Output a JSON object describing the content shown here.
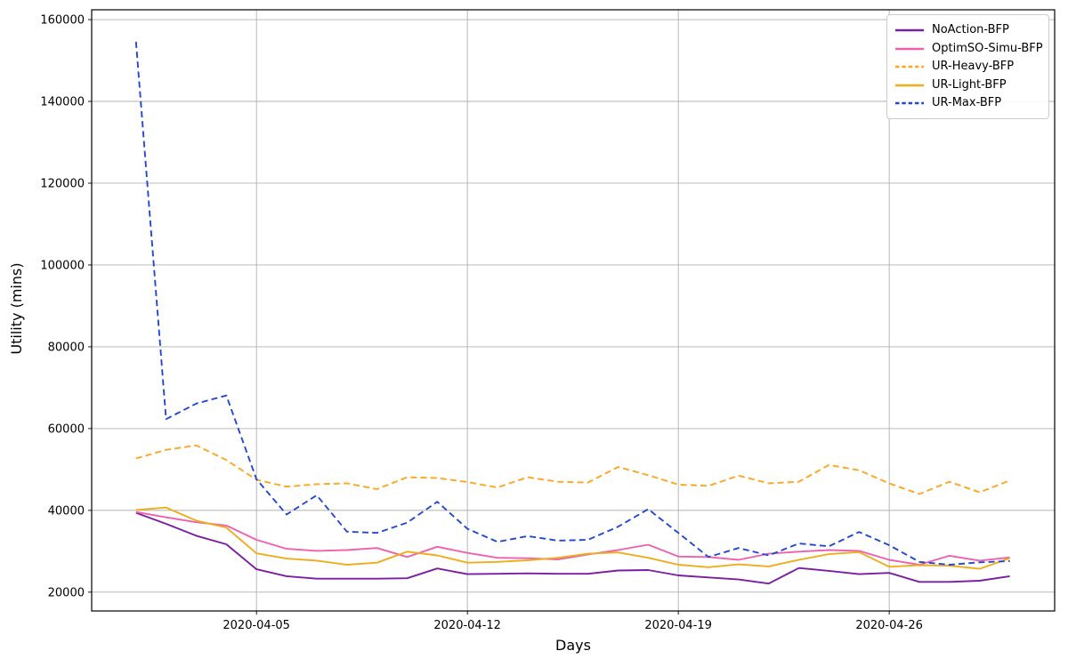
{
  "chart_data": {
    "type": "line",
    "title": "",
    "xlabel": "Days",
    "ylabel": "Utility (mins)",
    "x": [
      "2020-04-01",
      "2020-04-02",
      "2020-04-03",
      "2020-04-04",
      "2020-04-05",
      "2020-04-06",
      "2020-04-07",
      "2020-04-08",
      "2020-04-09",
      "2020-04-10",
      "2020-04-11",
      "2020-04-12",
      "2020-04-13",
      "2020-04-14",
      "2020-04-15",
      "2020-04-16",
      "2020-04-17",
      "2020-04-18",
      "2020-04-19",
      "2020-04-20",
      "2020-04-21",
      "2020-04-22",
      "2020-04-23",
      "2020-04-24",
      "2020-04-25",
      "2020-04-26",
      "2020-04-27",
      "2020-04-28",
      "2020-04-29",
      "2020-04-30"
    ],
    "x_tick_labels": [
      "2020-04-05",
      "2020-04-12",
      "2020-04-19",
      "2020-04-26"
    ],
    "x_tick_days": [
      5,
      12,
      19,
      26
    ],
    "y_ticks": [
      20000,
      40000,
      60000,
      80000,
      100000,
      120000,
      140000,
      160000
    ],
    "ylim": [
      15400,
      162400
    ],
    "xlim_days": [
      -0.47,
      31.49
    ],
    "grid": true,
    "grid_color": "#b0b0b0",
    "legend_position": "upper right",
    "series": [
      {
        "name": "NoAction-BFP",
        "color": "#7a1fa2",
        "style": "solid",
        "values": [
          39400,
          36700,
          33800,
          31700,
          25600,
          23900,
          23300,
          23300,
          23300,
          23400,
          25800,
          24400,
          24500,
          24600,
          24500,
          24500,
          25300,
          25400,
          24100,
          23600,
          23100,
          22100,
          25900,
          25200,
          24400,
          24700,
          22500,
          22500,
          22800,
          23900
        ]
      },
      {
        "name": "OptimSO-Simu-BFP",
        "color": "#ef60ae",
        "style": "solid",
        "values": [
          39600,
          38300,
          37100,
          36300,
          32800,
          30600,
          30100,
          30300,
          30800,
          28600,
          31100,
          29600,
          28400,
          28300,
          28000,
          29200,
          30300,
          31600,
          28700,
          28600,
          27900,
          29400,
          29900,
          30300,
          30100,
          27900,
          26700,
          28900,
          27700,
          28500
        ]
      },
      {
        "name": "UR-Heavy-BFP",
        "color": "#ffa51e",
        "style": "dashed",
        "values": [
          52700,
          54800,
          55900,
          52300,
          47500,
          45800,
          46400,
          46600,
          45200,
          48100,
          47900,
          46900,
          45600,
          48100,
          47000,
          46800,
          50600,
          48600,
          46300,
          46000,
          48500,
          46600,
          47000,
          51100,
          49800,
          46600,
          44000,
          47000,
          44400,
          47300
        ]
      },
      {
        "name": "UR-Light-BFP",
        "color": "#efad1d",
        "style": "solid",
        "values": [
          40100,
          40700,
          37500,
          35800,
          29500,
          28200,
          27700,
          26700,
          27200,
          29900,
          29000,
          27200,
          27400,
          27800,
          28400,
          29400,
          29700,
          28400,
          26700,
          26100,
          26800,
          26300,
          27900,
          29300,
          29800,
          26200,
          26600,
          26500,
          25700,
          28300
        ]
      },
      {
        "name": "UR-Max-BFP",
        "color": "#2348d4",
        "style": "dashed",
        "values": [
          154600,
          62300,
          66100,
          68100,
          47600,
          39000,
          43700,
          34800,
          34500,
          37000,
          42100,
          35500,
          32300,
          33700,
          32600,
          32800,
          36000,
          40300,
          34500,
          28600,
          30800,
          29000,
          31900,
          31200,
          34700,
          31500,
          27400,
          26700,
          27300,
          27600
        ]
      }
    ]
  }
}
